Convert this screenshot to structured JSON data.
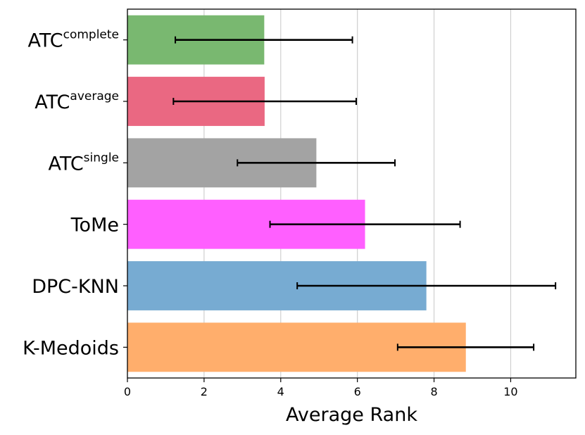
{
  "chart_data": {
    "type": "bar",
    "orientation": "horizontal",
    "xlabel": "Average Rank",
    "ylabel": "",
    "xlim": [
      0,
      11.7
    ],
    "xticks": [
      "0",
      "2",
      "4",
      "6",
      "8",
      "10"
    ],
    "grid": "vertical",
    "bars": [
      {
        "base": "ATC",
        "sup": "complete",
        "value": 3.57,
        "err_low": 1.25,
        "err_high": 5.87,
        "color": "#79b870"
      },
      {
        "base": "ATC",
        "sup": "average",
        "value": 3.58,
        "err_low": 1.2,
        "err_high": 5.97,
        "color": "#ea6882"
      },
      {
        "base": "ATC",
        "sup": "single",
        "value": 4.93,
        "err_low": 2.87,
        "err_high": 6.98,
        "color": "#a3a3a3"
      },
      {
        "base": "ToMe",
        "sup": "",
        "value": 6.2,
        "err_low": 3.72,
        "err_high": 8.68,
        "color": "#ff5fff"
      },
      {
        "base": "DPC-KNN",
        "sup": "",
        "value": 7.8,
        "err_low": 4.43,
        "err_high": 11.17,
        "color": "#77abd2"
      },
      {
        "base": "K-Medoids",
        "sup": "",
        "value": 8.83,
        "err_low": 7.05,
        "err_high": 10.6,
        "color": "#ffae6c"
      }
    ]
  }
}
